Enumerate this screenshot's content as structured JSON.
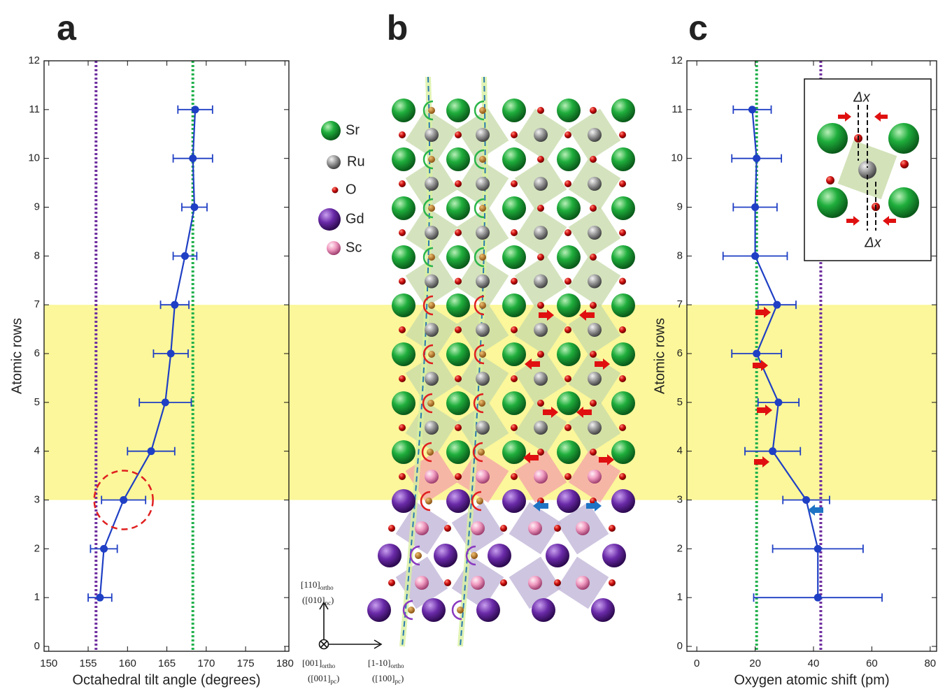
{
  "chart_data": [
    {
      "type": "line",
      "panel_label": "a",
      "xlabel": "Octahedral tilt angle (degrees)",
      "ylabel": "Atomic rows",
      "xlim": [
        149.4,
        180.5
      ],
      "ylim": [
        -0.1,
        12.0
      ],
      "xticks": [
        150,
        155,
        160,
        165,
        170,
        175,
        180
      ],
      "yticks": [
        0,
        1,
        2,
        3,
        4,
        5,
        6,
        7,
        8,
        9,
        10,
        11,
        12
      ],
      "band": [
        3,
        7
      ],
      "band_color": "#fbf79a",
      "vlines": [
        {
          "value": 156,
          "color": "#7030a0"
        },
        {
          "value": 168.3,
          "color": "#22b14c"
        }
      ],
      "annotations": [
        {
          "shape": "circle",
          "x": 159.5,
          "y": 3,
          "color": "#e02020"
        }
      ],
      "series": [
        {
          "color": "#1f3fc4",
          "x": [
            156.5,
            157,
            159.5,
            163,
            164.8,
            165.5,
            166,
            167.3,
            168.5,
            168.3,
            168.6
          ],
          "xerr": [
            1.5,
            1.7,
            2.8,
            3,
            3.3,
            2.2,
            1.8,
            1.5,
            1.6,
            2.5,
            2.2
          ],
          "values": [
            1,
            2,
            3,
            4,
            5,
            6,
            7,
            8,
            9,
            10,
            11
          ]
        }
      ]
    },
    {
      "type": "line",
      "panel_label": "c",
      "xlabel": "Oxygen atomic shift (pm)",
      "ylabel": "Atomic rows",
      "xlim": [
        -3.4,
        82.2
      ],
      "ylim": [
        -0.1,
        12.0
      ],
      "xticks": [
        0,
        20,
        40,
        60,
        80
      ],
      "yticks": [
        0,
        1,
        2,
        3,
        4,
        5,
        6,
        7,
        8,
        9,
        10,
        11,
        12
      ],
      "band": [
        3,
        7
      ],
      "band_color": "#fbf79a",
      "vlines": [
        {
          "value": 20.5,
          "color": "#22b14c"
        },
        {
          "value": 42.5,
          "color": "#7030a0"
        }
      ],
      "inset_labels": [
        "Δx",
        "Δx"
      ],
      "series": [
        {
          "color": "#1f3fc4",
          "x": [
            41.5,
            41.5,
            37.5,
            26,
            28,
            20.5,
            27.5,
            20,
            20,
            20.5,
            19
          ],
          "xerr": [
            22,
            15.5,
            8,
            9.5,
            7,
            8.5,
            6.5,
            11,
            7.5,
            8.5,
            6.5
          ],
          "values": [
            1,
            2,
            3,
            4,
            5,
            6,
            7,
            8,
            9,
            10,
            11
          ]
        }
      ]
    }
  ],
  "diagram": {
    "panel_label": "b",
    "legend": [
      "Sr",
      "Ru",
      "O",
      "Gd",
      "Sc"
    ],
    "axes": {
      "up": [
        {
          "main": "[110]",
          "sub": "ortho"
        },
        {
          "main": "([010]",
          "sub": "pc",
          "tail": ")"
        }
      ],
      "out": [
        {
          "main": "[001]",
          "sub": "ortho"
        },
        {
          "main": "([001]",
          "sub": "pc",
          "tail": ")"
        }
      ],
      "right": [
        {
          "main": "[1-10]",
          "sub": "ortho"
        },
        {
          "main": "([100]",
          "sub": "pc",
          "tail": ")"
        }
      ]
    }
  }
}
